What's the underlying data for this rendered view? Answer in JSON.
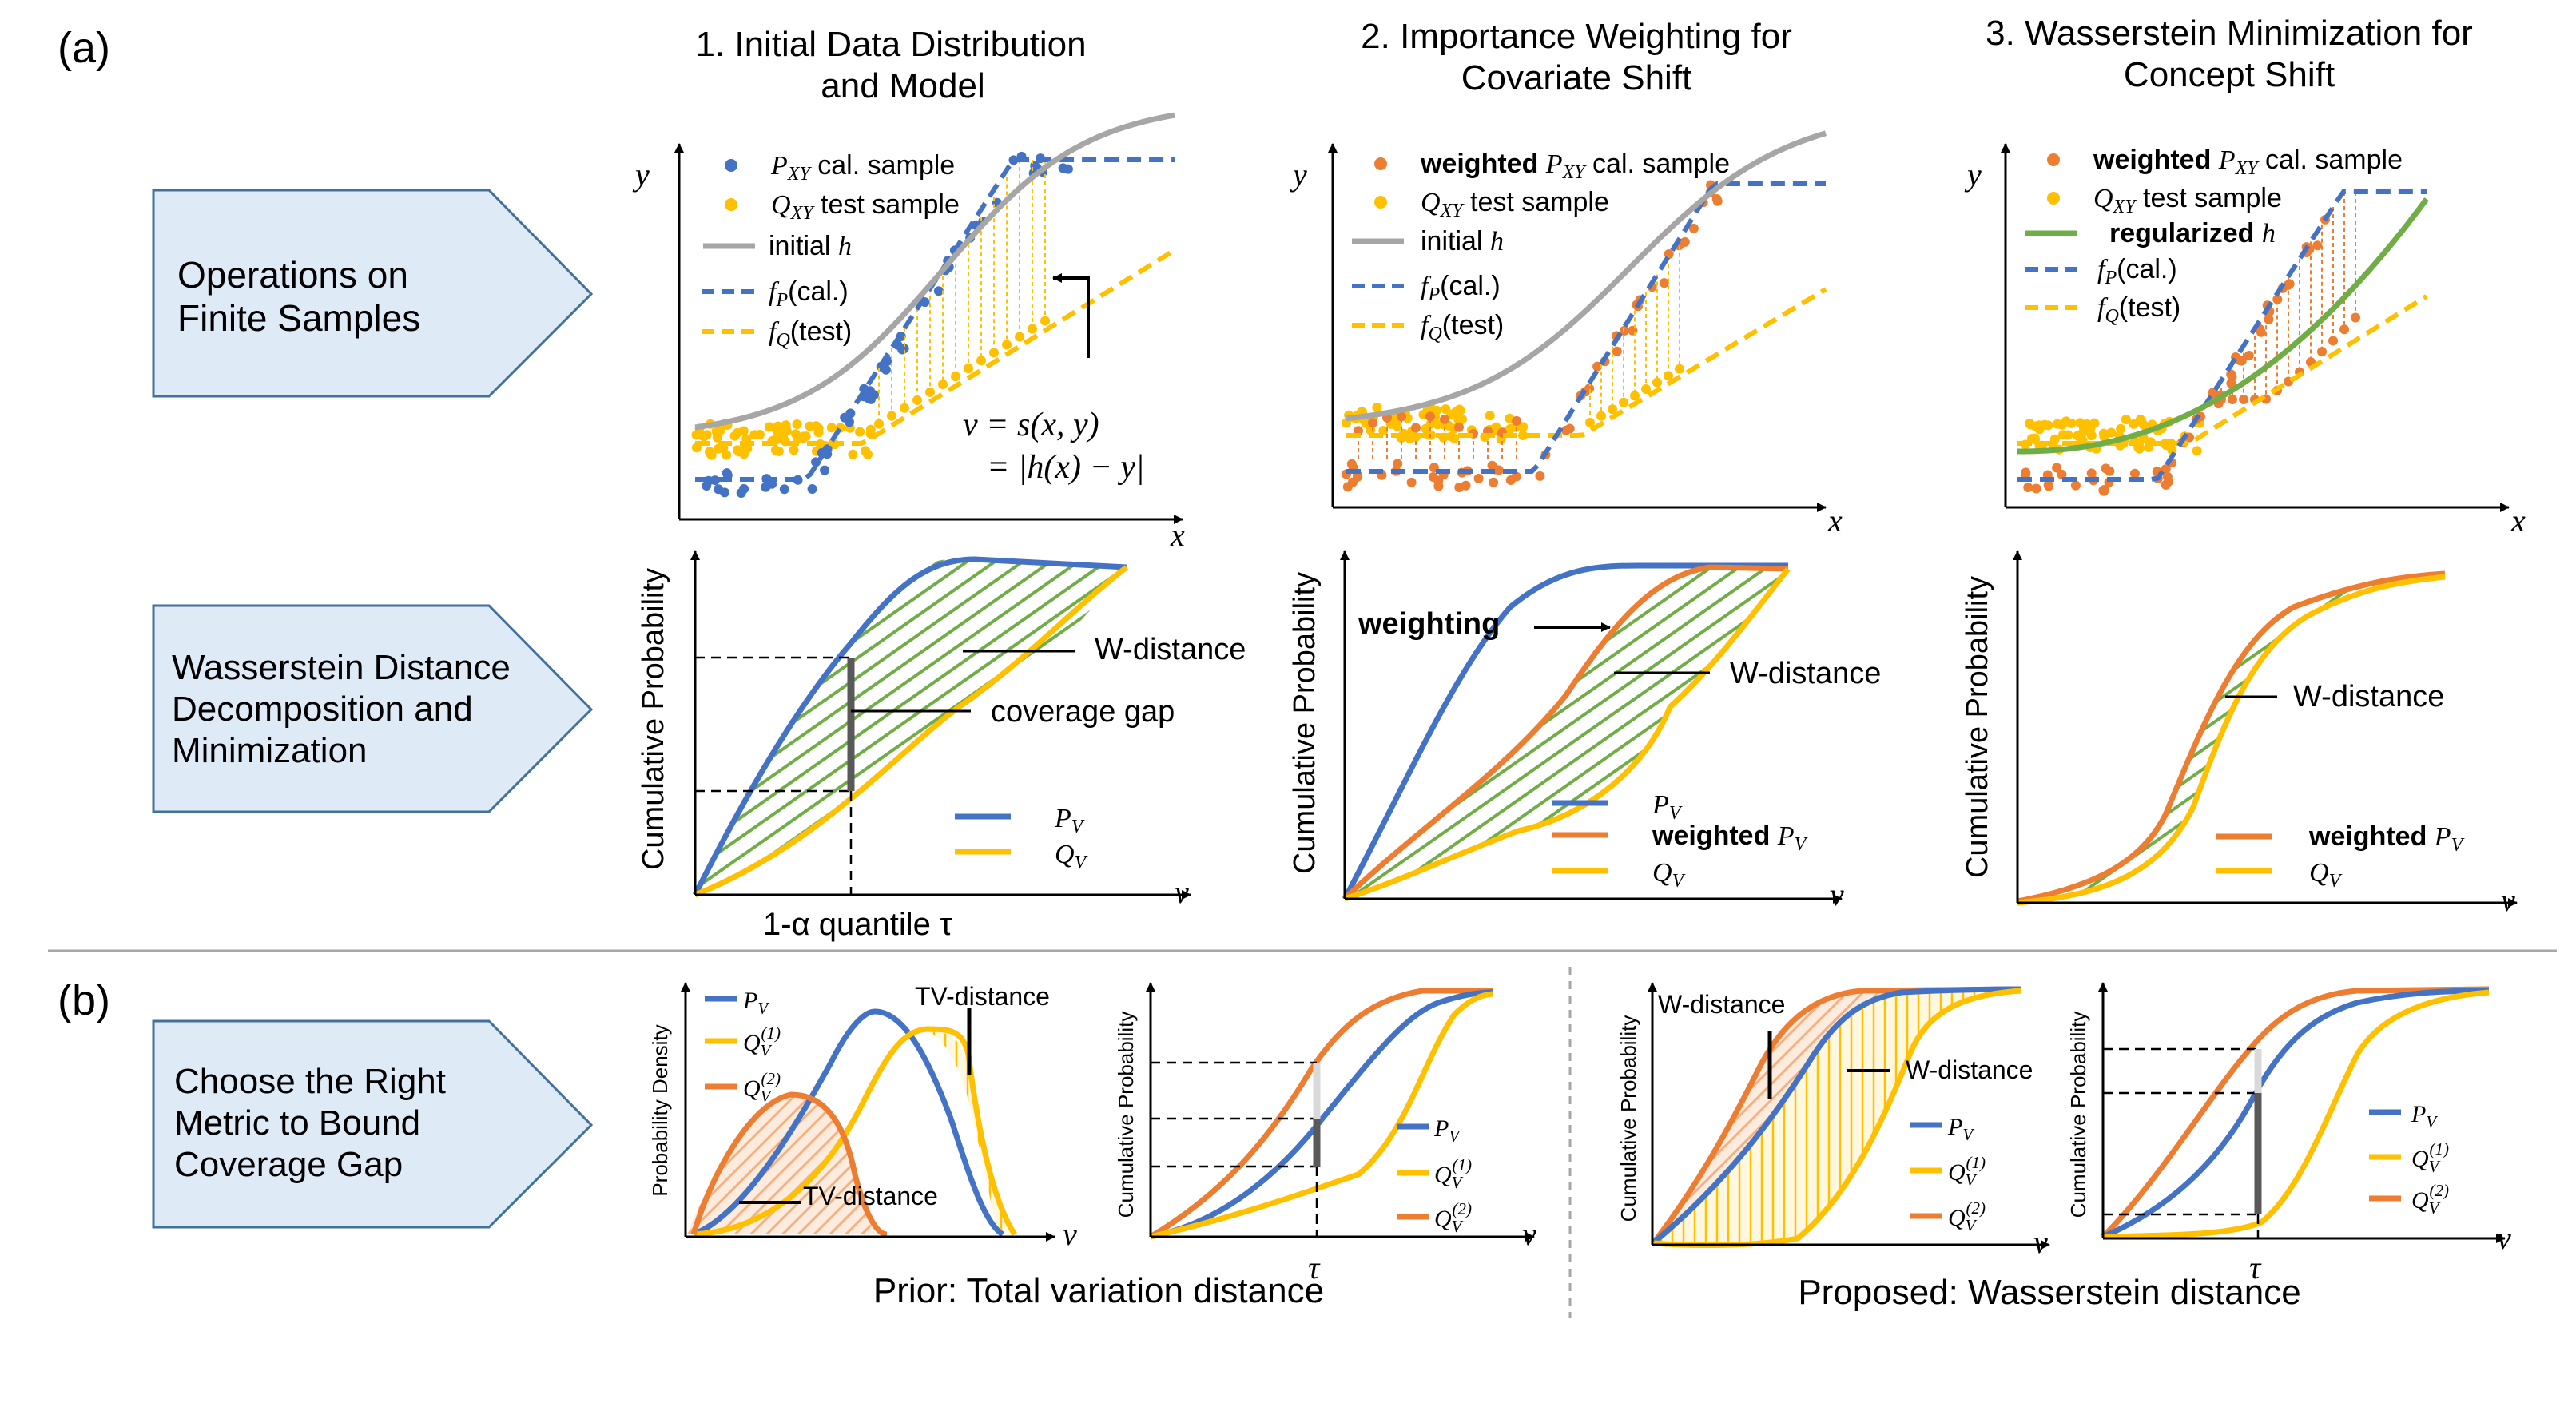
{
  "panel_labels": {
    "a": "(a)",
    "b": "(b)"
  },
  "colors": {
    "blue": "#4472C4",
    "orange": "#ED7D31",
    "yellow": "#FFC000",
    "gray": "#A6A6A6",
    "green": "#70AD47",
    "box_fill": "#DEEBF7",
    "box_stroke": "#41719C",
    "dark_bar": "#595959"
  },
  "row_labels": {
    "ops": [
      "Operations on",
      "Finite Samples"
    ],
    "wass": [
      "Wasserstein Distance",
      "Decomposition and",
      "Minimization"
    ],
    "choose": [
      "Choose the Right",
      "Metric to Bound",
      "Coverage Gap"
    ]
  },
  "column_titles": {
    "c1": [
      "1.   Initial Data Distribution",
      "and Model"
    ],
    "c2": [
      "2. Importance Weighting for",
      "Covariate Shift"
    ],
    "c3": [
      "3. Wasserstein Minimization for",
      "Concept Shift"
    ]
  },
  "axis": {
    "x": "x",
    "y": "y",
    "v": "v",
    "cum_prob": "Cumulative Probability",
    "prob_density": "Probability Density"
  },
  "scatter1": {
    "legend": [
      {
        "sym": "P",
        "sub": "XY",
        "text": " cal. sample"
      },
      {
        "sym": "Q",
        "sub": "XY",
        "text": " test sample"
      },
      {
        "text": "initial ",
        "sym": "h"
      },
      {
        "sym": "f",
        "sub": "P",
        "text": "(cal.)"
      },
      {
        "sym": "f",
        "sub": "Q",
        "text": "(test)"
      }
    ],
    "score_line1": "v = s(x, y)",
    "score_line2": "= |h(x) − y|"
  },
  "scatter2": {
    "legend": [
      {
        "bold": "weighted ",
        "sym": "P",
        "sub": "XY",
        "text": " cal. sample"
      },
      {
        "sym": "Q",
        "sub": "XY",
        "text": " test sample"
      },
      {
        "text": "initial ",
        "sym": "h"
      },
      {
        "sym": "f",
        "sub": "P",
        "text": "(cal.)"
      },
      {
        "sym": "f",
        "sub": "Q",
        "text": "(test)"
      }
    ]
  },
  "scatter3": {
    "legend": [
      {
        "bold": "weighted ",
        "sym": "P",
        "sub": "XY",
        "text": " cal. sample"
      },
      {
        "sym": "Q",
        "sub": "XY",
        "text": " test sample"
      },
      {
        "bold": "regularized ",
        "sym": "h"
      },
      {
        "sym": "f",
        "sub": "P",
        "text": "(cal.)"
      },
      {
        "sym": "f",
        "sub": "Q",
        "text": "(test)"
      }
    ]
  },
  "cdf1": {
    "w_distance": "W-distance",
    "coverage_gap": "coverage gap",
    "quantile": "1-α quantile τ",
    "legend": [
      "P",
      "Q"
    ]
  },
  "cdf2": {
    "weighting": "weighting",
    "w_distance": "W-distance",
    "legend_weighted": "weighted "
  },
  "cdf3": {
    "w_distance": "W-distance",
    "legend_weighted": "weighted "
  },
  "panel_b": {
    "tv_distance": "TV-distance",
    "w_distance": "W-distance",
    "tau": "τ",
    "prior_caption": "Prior: Total variation distance",
    "proposed_caption": "Proposed: Wasserstein distance"
  }
}
